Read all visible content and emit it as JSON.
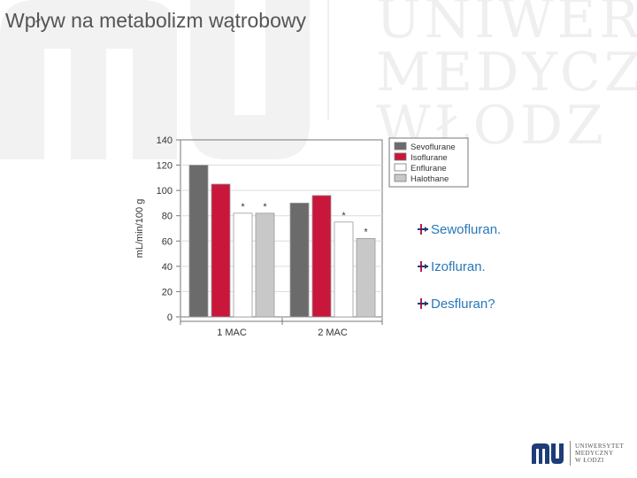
{
  "slide": {
    "title": "Wpływ na metabolizm wątrobowy"
  },
  "watermark": {
    "lines": [
      "UNIWER",
      "MEDYCZ",
      "WŁODZ"
    ]
  },
  "bullets": [
    {
      "label": "Sewofluran."
    },
    {
      "label": "Izofluran."
    },
    {
      "label": "Desfluran?"
    }
  ],
  "logo": {
    "lines": [
      "UNIWERSYTET",
      "MEDYCZNY",
      "W ŁODZI"
    ]
  },
  "colors": {
    "accent": "#2878b9",
    "sevoflurane": "#6b6b6b",
    "isoflurane": "#c8173b",
    "enflurane": "#ffffff",
    "halothane": "#c8c8c8"
  },
  "chart_data": {
    "type": "bar",
    "categories": [
      "1 MAC",
      "2 MAC"
    ],
    "series": [
      {
        "name": "Sevoflurane",
        "values": [
          120,
          90
        ],
        "color": "#6b6b6b",
        "marks": [
          "",
          ""
        ]
      },
      {
        "name": "Isoflurane",
        "values": [
          105,
          96
        ],
        "color": "#c8173b",
        "marks": [
          "",
          ""
        ]
      },
      {
        "name": "Enflurane",
        "values": [
          82,
          75
        ],
        "color": "#ffffff",
        "marks": [
          "*",
          "*"
        ]
      },
      {
        "name": "Halothane",
        "values": [
          82,
          62
        ],
        "color": "#c8c8c8",
        "marks": [
          "*",
          "*"
        ]
      }
    ],
    "ylabel": "mL/min/100 g",
    "ylim": [
      0,
      140
    ],
    "yticks": [
      0,
      20,
      40,
      60,
      80,
      100,
      120,
      140
    ],
    "legend": "top-right",
    "grid": true
  }
}
